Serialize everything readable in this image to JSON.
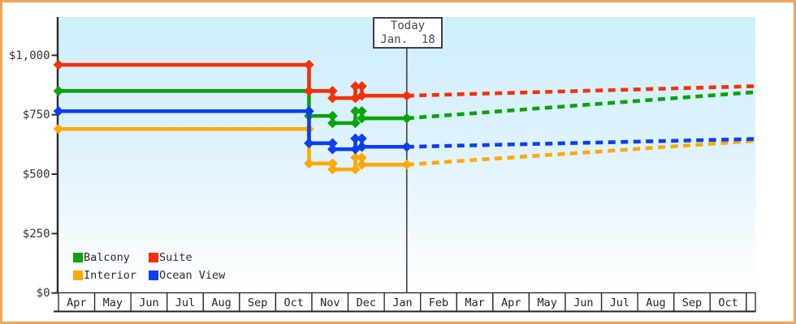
{
  "window": {
    "frame_border_color": "#f0a55e",
    "background_color": "#ffffff"
  },
  "chart_data": {
    "type": "line",
    "title": "",
    "grid": "off",
    "plot_background": {
      "top_color": "#cfeefc",
      "mid_color": "#ddf2fc",
      "bottom_color": "#ffffff"
    },
    "axis_color": "#2b2b2b",
    "label_color": "#333333",
    "y_axis": {
      "range": [
        0,
        1160
      ],
      "ticks": [
        {
          "label": "$0",
          "value": 0
        },
        {
          "label": "$250",
          "value": 250
        },
        {
          "label": "$500",
          "value": 500
        },
        {
          "label": "$750",
          "value": 750
        },
        {
          "label": "$1,000",
          "value": 1000
        }
      ]
    },
    "x_axis": {
      "unit": "month",
      "months": [
        "Apr",
        "May",
        "Jun",
        "Jul",
        "Aug",
        "Sep",
        "Oct",
        "Nov",
        "Dec",
        "Jan",
        "Feb",
        "Mar",
        "Apr",
        "May",
        "Jun",
        "Jul",
        "Aug",
        "Sep",
        "Oct"
      ],
      "trailing_partial_cell": true,
      "range_month_units": [
        0,
        19.25
      ]
    },
    "today_marker": {
      "line1": "Today",
      "line2": "Jan.  18",
      "month_unit": 9.62,
      "line_color": "#414141",
      "box_border_color": "#3a4048"
    },
    "series": [
      {
        "name": "Balcony",
        "color": "#0aa30a",
        "points": [
          [
            0,
            850
          ],
          [
            6.92,
            850
          ],
          [
            6.92,
            745
          ],
          [
            7.57,
            745
          ],
          [
            7.57,
            715
          ],
          [
            8.2,
            715
          ],
          [
            8.2,
            765
          ],
          [
            8.38,
            765
          ],
          [
            8.38,
            735
          ],
          [
            9.62,
            735
          ]
        ],
        "forecast": [
          [
            9.62,
            735
          ],
          [
            19.22,
            845
          ]
        ]
      },
      {
        "name": "Suite",
        "color": "#f43105",
        "points": [
          [
            0,
            960
          ],
          [
            6.92,
            960
          ],
          [
            6.92,
            850
          ],
          [
            7.57,
            850
          ],
          [
            7.57,
            820
          ],
          [
            8.2,
            820
          ],
          [
            8.2,
            870
          ],
          [
            8.38,
            870
          ],
          [
            8.38,
            830
          ],
          [
            9.62,
            830
          ]
        ],
        "forecast": [
          [
            9.62,
            830
          ],
          [
            19.22,
            870
          ]
        ]
      },
      {
        "name": "Interior",
        "color": "#ffa801",
        "points": [
          [
            0,
            690
          ],
          [
            6.92,
            690
          ],
          [
            6.92,
            545
          ],
          [
            7.57,
            545
          ],
          [
            7.57,
            520
          ],
          [
            8.2,
            520
          ],
          [
            8.2,
            570
          ],
          [
            8.38,
            570
          ],
          [
            8.38,
            540
          ],
          [
            9.62,
            540
          ]
        ],
        "forecast": [
          [
            9.62,
            540
          ],
          [
            19.22,
            640
          ]
        ]
      },
      {
        "name": "Ocean View",
        "color": "#0c3df2",
        "points": [
          [
            0,
            765
          ],
          [
            6.92,
            765
          ],
          [
            6.92,
            630
          ],
          [
            7.57,
            630
          ],
          [
            7.57,
            605
          ],
          [
            8.2,
            605
          ],
          [
            8.2,
            650
          ],
          [
            8.38,
            650
          ],
          [
            8.38,
            615
          ],
          [
            9.62,
            615
          ]
        ],
        "forecast": [
          [
            9.62,
            615
          ],
          [
            19.22,
            648
          ]
        ]
      }
    ],
    "legend": {
      "position": "bottom-left-inside-plot",
      "items": [
        {
          "label": "Balcony",
          "color": "#0aa30a"
        },
        {
          "label": "Suite",
          "color": "#f43105"
        },
        {
          "label": "Interior",
          "color": "#ffa801"
        },
        {
          "label": "Ocean View",
          "color": "#0c3df2"
        }
      ]
    }
  }
}
